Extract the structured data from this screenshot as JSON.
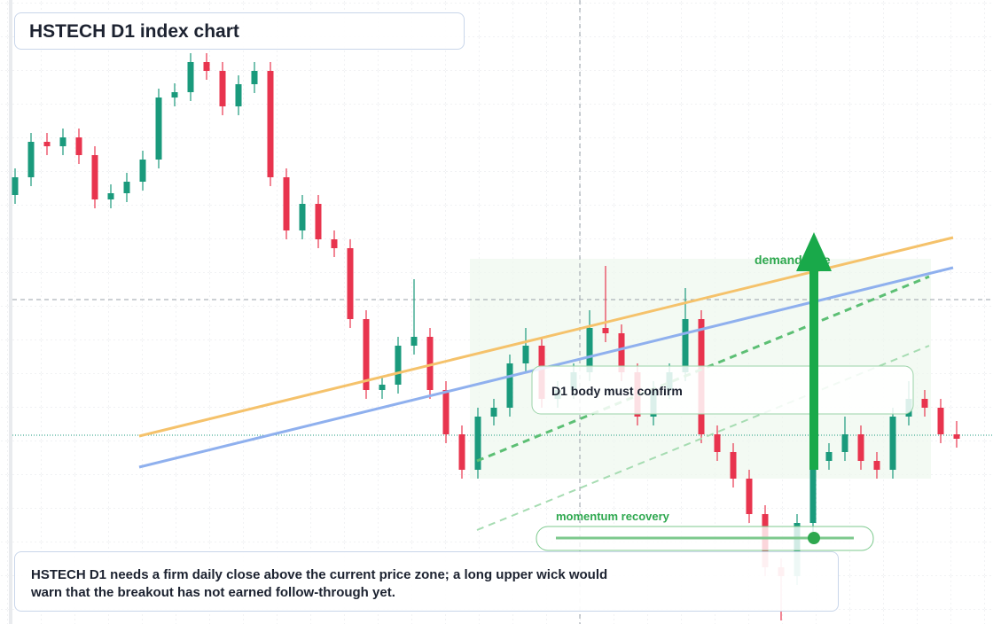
{
  "header": {
    "title": "HSTECH D1 index chart"
  },
  "chart_data": {
    "type": "candlestick",
    "ylim": [
      0,
      704
    ],
    "up_color": "#1a9a7c",
    "down_color": "#e8344e",
    "open": [
      484,
      504,
      544,
      539,
      549,
      529,
      479,
      486,
      499,
      524,
      594,
      600,
      634,
      624,
      584,
      609,
      624,
      504,
      444,
      474,
      434,
      424,
      344,
      264,
      270,
      314,
      324,
      264,
      214,
      174,
      234,
      244,
      294,
      314,
      254,
      264,
      284,
      334,
      328,
      284,
      234,
      264,
      284,
      344,
      214,
      194,
      164,
      124,
      64,
      54,
      114,
      184,
      194,
      214,
      184,
      174,
      234,
      254,
      244,
      214
    ],
    "high": [
      514,
      554,
      554,
      559,
      559,
      539,
      496,
      509,
      534,
      604,
      610,
      644,
      644,
      634,
      619,
      634,
      634,
      514,
      484,
      484,
      444,
      434,
      354,
      280,
      324,
      389,
      334,
      274,
      224,
      244,
      254,
      304,
      334,
      324,
      274,
      294,
      354,
      404,
      338,
      294,
      274,
      294,
      379,
      354,
      224,
      204,
      174,
      134,
      74,
      124,
      194,
      204,
      234,
      224,
      194,
      244,
      274,
      264,
      254,
      229
    ],
    "low": [
      474,
      494,
      529,
      529,
      519,
      469,
      469,
      476,
      489,
      514,
      584,
      590,
      614,
      574,
      574,
      599,
      494,
      434,
      434,
      424,
      414,
      334,
      254,
      254,
      260,
      304,
      254,
      204,
      164,
      164,
      224,
      234,
      284,
      244,
      244,
      254,
      274,
      318,
      274,
      224,
      224,
      254,
      274,
      204,
      184,
      154,
      114,
      54,
      4,
      44,
      104,
      174,
      184,
      174,
      164,
      164,
      224,
      234,
      204,
      199
    ],
    "close": [
      504,
      544,
      539,
      549,
      529,
      479,
      486,
      499,
      524,
      594,
      600,
      634,
      624,
      584,
      609,
      624,
      504,
      444,
      474,
      434,
      424,
      344,
      264,
      270,
      314,
      324,
      264,
      214,
      174,
      234,
      244,
      294,
      314,
      254,
      264,
      284,
      334,
      328,
      284,
      234,
      264,
      284,
      344,
      214,
      194,
      164,
      124,
      64,
      54,
      114,
      184,
      194,
      214,
      184,
      174,
      234,
      254,
      244,
      214,
      209
    ],
    "annotations": [
      "demand side",
      "D1 body must confirm",
      "momentum recovery"
    ]
  },
  "note": {
    "text": "HSTECH D1 needs a firm daily close above the current price zone; a long upper wick would warn that the breakout has not earned follow-through yet."
  }
}
